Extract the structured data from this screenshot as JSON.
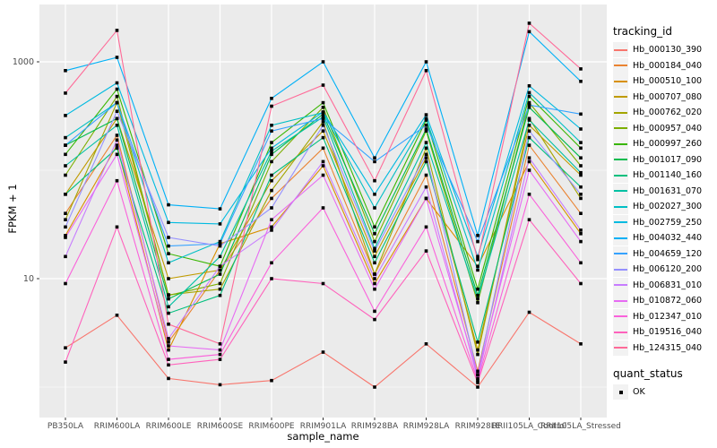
{
  "figure": {
    "x_axis_title": "sample_name",
    "y_axis_title": "FPKM + 1"
  },
  "legend": {
    "tracking_title": "tracking_id",
    "quant_title": "quant_status",
    "quant_items": [
      {
        "label": "OK",
        "marker": "black-square"
      }
    ]
  },
  "chart_data": {
    "type": "line",
    "x_axis": {
      "label": "sample_name",
      "categories": [
        "PB350LA",
        "RRIM600LA",
        "RRIM600LE",
        "RRIM600SE",
        "RRIM600PE",
        "RRIM901LA",
        "RRIM928BA",
        "RRIM928LA",
        "RRIM928LE",
        "RRII105LA_Control",
        "RRII105LA_Stressed"
      ]
    },
    "y_axis": {
      "label": "FPKM + 1",
      "scale": "log10",
      "tick_values": [
        10,
        1000
      ],
      "tick_labels": [
        "10",
        "1000"
      ],
      "minor_gridlines_at": [
        1,
        100
      ],
      "approx_range": [
        1,
        3100
      ]
    },
    "panel": {
      "background": "#EBEBEB",
      "gridline_color": "#FFFFFF",
      "tick_color": "#333333",
      "tick_label_color": "#4D4D4D"
    },
    "points": {
      "color": "#000000",
      "shape": "square",
      "legend_status": "OK"
    },
    "legend_position": "right",
    "series": [
      {
        "name": "Hb_000130_390",
        "color": "#F8766D",
        "values": [
          2.3,
          4.6,
          1.2,
          1.05,
          1.15,
          2.1,
          1.0,
          2.5,
          1.0,
          4.9,
          2.5
        ]
      },
      {
        "name": "Hb_000184_040",
        "color": "#EA8331",
        "values": [
          40,
          210,
          2.6,
          12,
          55,
          160,
          11,
          90,
          1.4,
          170,
          40
        ]
      },
      {
        "name": "Hb_000510_100",
        "color": "#D89000",
        "values": [
          25,
          170,
          2.2,
          21,
          30,
          110,
          9,
          55,
          13,
          120,
          26
        ]
      },
      {
        "name": "Hb_000707_080",
        "color": "#C09B00",
        "values": [
          60,
          300,
          10,
          12,
          80,
          230,
          16,
          130,
          2.2,
          260,
          90
        ]
      },
      {
        "name": "Hb_000762_020",
        "color": "#A3A500",
        "values": [
          35,
          420,
          7.1,
          8,
          65,
          280,
          11,
          160,
          2.0,
          300,
          55
        ]
      },
      {
        "name": "Hb_000957_040",
        "color": "#7CAE00",
        "values": [
          90,
          480,
          7.0,
          9,
          120,
          380,
          22,
          230,
          6,
          420,
          110
        ]
      },
      {
        "name": "Hb_000997_260",
        "color": "#39B600",
        "values": [
          140,
          560,
          17,
          13,
          180,
          420,
          30,
          290,
          8,
          480,
          160
        ]
      },
      {
        "name": "Hb_001017_090",
        "color": "#00BB4E",
        "values": [
          170,
          300,
          6.5,
          11,
          140,
          330,
          26,
          240,
          7,
          380,
          130
        ]
      },
      {
        "name": "Hb_001140_160",
        "color": "#00BF7D",
        "values": [
          60,
          160,
          4.8,
          7,
          90,
          200,
          14,
          120,
          2.6,
          200,
          70
        ]
      },
      {
        "name": "Hb_001631_070",
        "color": "#00C1A3",
        "values": [
          110,
          260,
          5.5,
          16,
          150,
          310,
          19,
          180,
          6.5,
          290,
          95
        ]
      },
      {
        "name": "Hb_002027_300",
        "color": "#00BFC4",
        "values": [
          200,
          420,
          14,
          22,
          260,
          340,
          45,
          300,
          12,
          520,
          180
        ]
      },
      {
        "name": "Hb_002759_250",
        "color": "#00BAE0",
        "values": [
          320,
          640,
          33,
          32,
          160,
          345,
          60,
          325,
          16,
          600,
          240
        ]
      },
      {
        "name": "Hb_004032_440",
        "color": "#00B0F6",
        "values": [
          830,
          1100,
          48,
          44,
          460,
          1000,
          130,
          1000,
          25,
          1900,
          660
        ]
      },
      {
        "name": "Hb_004659_120",
        "color": "#35A2FF",
        "values": [
          170,
          420,
          20,
          21,
          230,
          300,
          120,
          260,
          22,
          400,
          330
        ]
      },
      {
        "name": "Hb_006120_200",
        "color": "#9590FF",
        "values": [
          30,
          350,
          24,
          20,
          45,
          260,
          18,
          140,
          1.3,
          230,
          60
        ]
      },
      {
        "name": "Hb_006831_010",
        "color": "#C77CFF",
        "values": [
          16,
          190,
          2.8,
          13,
          28,
          120,
          10,
          70,
          1.2,
          130,
          28
        ]
      },
      {
        "name": "Hb_010872_060",
        "color": "#E76BF3",
        "values": [
          24,
          140,
          2.4,
          2.2,
          35,
          90,
          8,
          55,
          1.3,
          100,
          22
        ]
      },
      {
        "name": "Hb_012347_010",
        "color": "#FA62DB",
        "values": [
          9,
          80,
          1.8,
          2.0,
          14,
          45,
          5,
          30,
          1.15,
          60,
          14
        ]
      },
      {
        "name": "Hb_019516_040",
        "color": "#FF62BC",
        "values": [
          1.7,
          30,
          1.6,
          1.8,
          10,
          9,
          4.2,
          18,
          1.1,
          35,
          9
        ]
      },
      {
        "name": "Hb_124315_040",
        "color": "#FF6A98",
        "values": [
          515,
          1950,
          3.8,
          2.5,
          390,
          610,
          80,
          830,
          15,
          2270,
          860
        ]
      }
    ]
  }
}
